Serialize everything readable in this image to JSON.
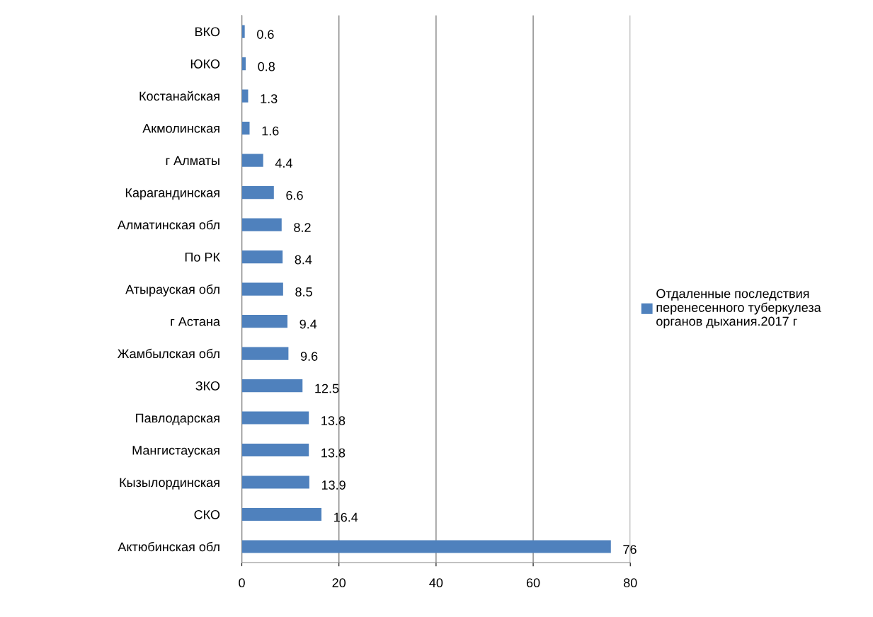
{
  "chart_data": {
    "type": "bar",
    "orientation": "horizontal",
    "categories": [
      "ВКО",
      "ЮКО",
      "Костанайская",
      "Акмолинская",
      "г Алматы",
      "Карагандинская",
      "Алматинская обл",
      "По РК",
      "Атырауская обл",
      "г Астана",
      "Жамбылская обл",
      "ЗКО",
      "Павлодарская",
      "Мангистауская",
      "Кызылординская",
      "СКО",
      "Актюбинская обл"
    ],
    "series": [
      {
        "name": "Отдаленные последствия перенесенного туберкулеза органов дыхания.2017 г",
        "color": "#4f81bd",
        "values": [
          0.6,
          0.8,
          1.3,
          1.6,
          4.4,
          6.6,
          8.2,
          8.4,
          8.5,
          9.4,
          9.6,
          12.5,
          13.8,
          13.8,
          13.9,
          16.4,
          76
        ]
      }
    ],
    "xlim": [
      0,
      80
    ],
    "xticks": [
      0,
      20,
      40,
      60,
      80
    ],
    "grid": "x",
    "legend": "right",
    "data_labels": true
  }
}
